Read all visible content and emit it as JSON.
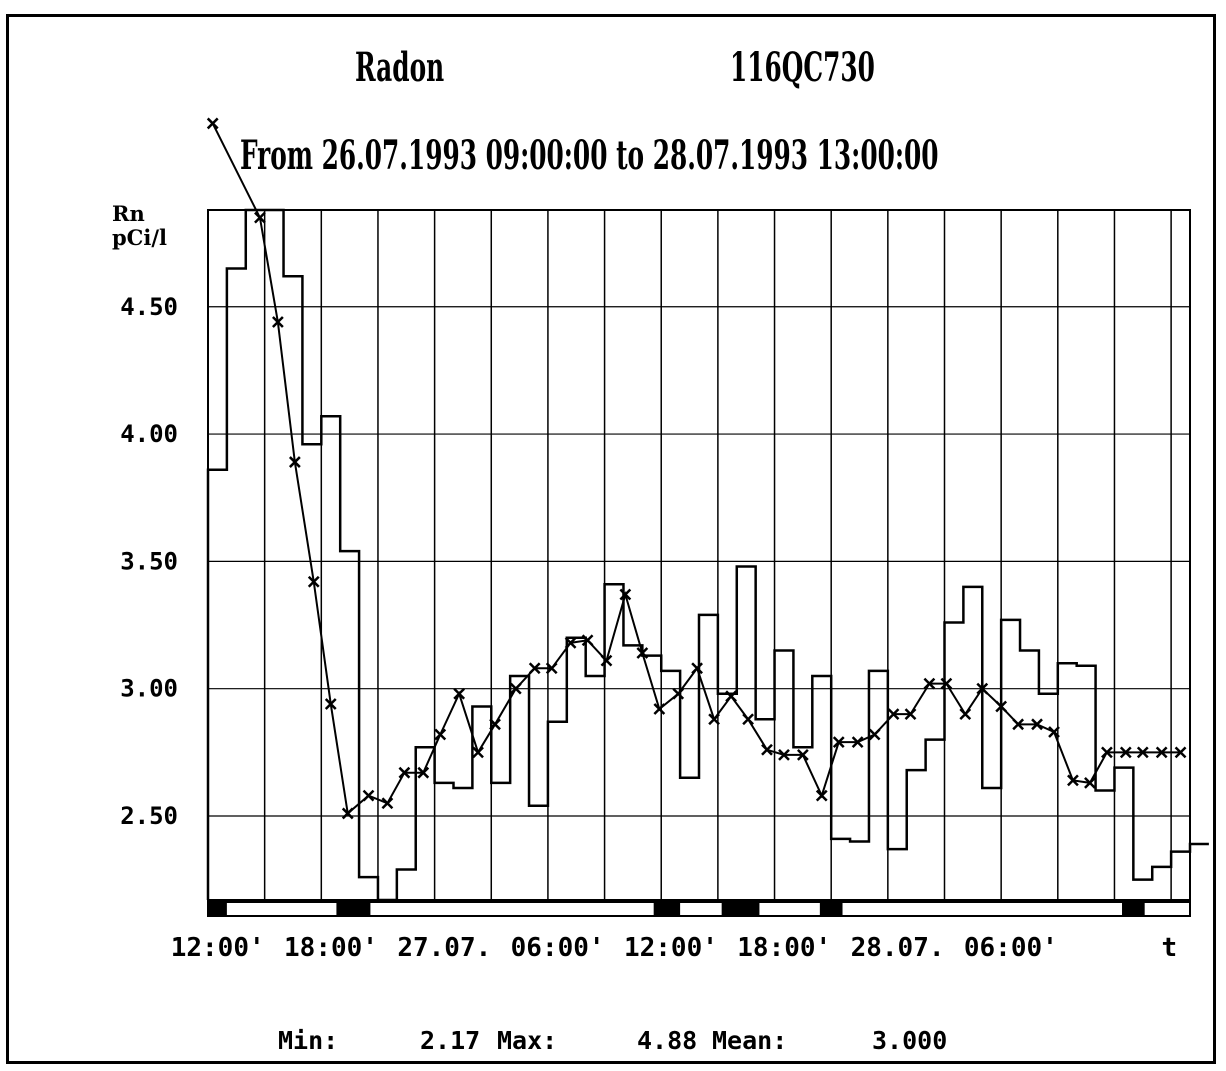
{
  "header": {
    "title": "Radon",
    "station": "116QC730",
    "subtitle": "From 26.07.1993 09:00:00 to 28.07.1993 13:00:00"
  },
  "footer": {
    "min_label": "Min:",
    "min_value": "2.17",
    "max_label": "Max:",
    "max_value": "4.88",
    "mean_label": "Mean:",
    "mean_value": "3.000"
  },
  "chart_data": {
    "type": "line",
    "title": "Radon",
    "subtitle": "From 26.07.1993 09:00:00 to 28.07.1993 13:00:00",
    "ylabel": "Rn\npCi/l",
    "xlabel": "t",
    "ylim": [
      2.17,
      4.88
    ],
    "xlim": [
      0,
      52
    ],
    "yticks": [
      2.5,
      3.0,
      3.5,
      4.0,
      4.5
    ],
    "ytick_labels": [
      "2.50",
      "3.00",
      "3.50",
      "4.00",
      "4.50"
    ],
    "xtick_labels": [
      {
        "x": 3,
        "label": "12:00'"
      },
      {
        "x": 9,
        "label": "18:00'"
      },
      {
        "x": 15,
        "label": "27.07."
      },
      {
        "x": 21,
        "label": "06:00'"
      },
      {
        "x": 27,
        "label": "12:00'"
      },
      {
        "x": 33,
        "label": "18:00'"
      },
      {
        "x": 39,
        "label": "28.07."
      },
      {
        "x": 45,
        "label": "06:00'"
      },
      {
        "x": 51,
        "label": "t"
      }
    ],
    "grid": true,
    "series": [
      {
        "style": "step",
        "x": [
          0,
          1,
          2,
          3,
          4,
          5,
          6,
          7,
          8,
          9,
          10,
          11,
          12,
          13,
          14,
          15,
          16,
          17,
          18,
          19,
          20,
          21,
          22,
          23,
          24,
          25,
          26,
          27,
          28,
          29,
          30,
          31,
          32,
          33,
          34,
          35,
          36,
          37,
          38,
          39,
          40,
          41,
          42,
          43,
          44,
          45,
          46,
          47,
          48,
          49,
          50,
          51,
          52
        ],
        "values": [
          3.86,
          4.65,
          4.88,
          4.88,
          4.62,
          3.96,
          4.07,
          3.54,
          2.26,
          2.17,
          2.29,
          2.77,
          2.63,
          2.61,
          2.93,
          2.63,
          3.05,
          2.54,
          2.87,
          3.2,
          3.05,
          3.41,
          3.17,
          3.13,
          3.07,
          2.65,
          3.29,
          2.98,
          3.48,
          2.88,
          3.15,
          2.77,
          3.05,
          2.41,
          2.4,
          3.07,
          2.37,
          2.68,
          2.8,
          3.26,
          3.4,
          2.61,
          3.27,
          3.15,
          2.98,
          3.1,
          3.09,
          2.6,
          2.69,
          2.25,
          2.3,
          2.36,
          2.39
        ]
      },
      {
        "style": "line-markers",
        "x": [
          0.25,
          2.75,
          3.7,
          4.6,
          5.6,
          6.5,
          7.4,
          8.5,
          9.5,
          10.4,
          11.4,
          12.3,
          13.3,
          14.3,
          15.2,
          16.3,
          17.3,
          18.2,
          19.2,
          20.1,
          21.1,
          22.1,
          23.0,
          23.9,
          24.9,
          25.9,
          26.8,
          27.7,
          28.6,
          29.6,
          30.5,
          31.5,
          32.5,
          33.4,
          34.4,
          35.3,
          36.3,
          37.2,
          38.2,
          39.1,
          40.1,
          41.0,
          42.0,
          42.9,
          43.9,
          44.8,
          45.8,
          46.7,
          47.6,
          48.6,
          49.5,
          50.5,
          51.5
        ],
        "values": [
          5.22,
          4.85,
          4.44,
          3.89,
          3.42,
          2.94,
          2.51,
          2.58,
          2.55,
          2.67,
          2.67,
          2.82,
          2.98,
          2.75,
          2.86,
          3.0,
          3.08,
          3.08,
          3.18,
          3.19,
          3.11,
          3.37,
          3.14,
          2.92,
          2.98,
          3.08,
          2.88,
          2.97,
          2.88,
          2.76,
          2.74,
          2.74,
          2.58,
          2.79,
          2.79,
          2.82,
          2.9,
          2.9,
          3.02,
          3.02,
          2.9,
          3.0,
          2.93,
          2.86,
          2.86,
          2.83,
          2.64,
          2.63,
          2.75,
          2.75,
          2.75,
          2.75,
          2.75
        ]
      }
    ],
    "bottom_bar": {
      "dark_segments": [
        [
          0,
          0.5
        ],
        [
          3.4,
          4.3
        ],
        [
          11.8,
          12.5
        ],
        [
          13.6,
          14.6
        ],
        [
          16.2,
          16.8
        ],
        [
          24.2,
          24.8
        ]
      ]
    }
  }
}
